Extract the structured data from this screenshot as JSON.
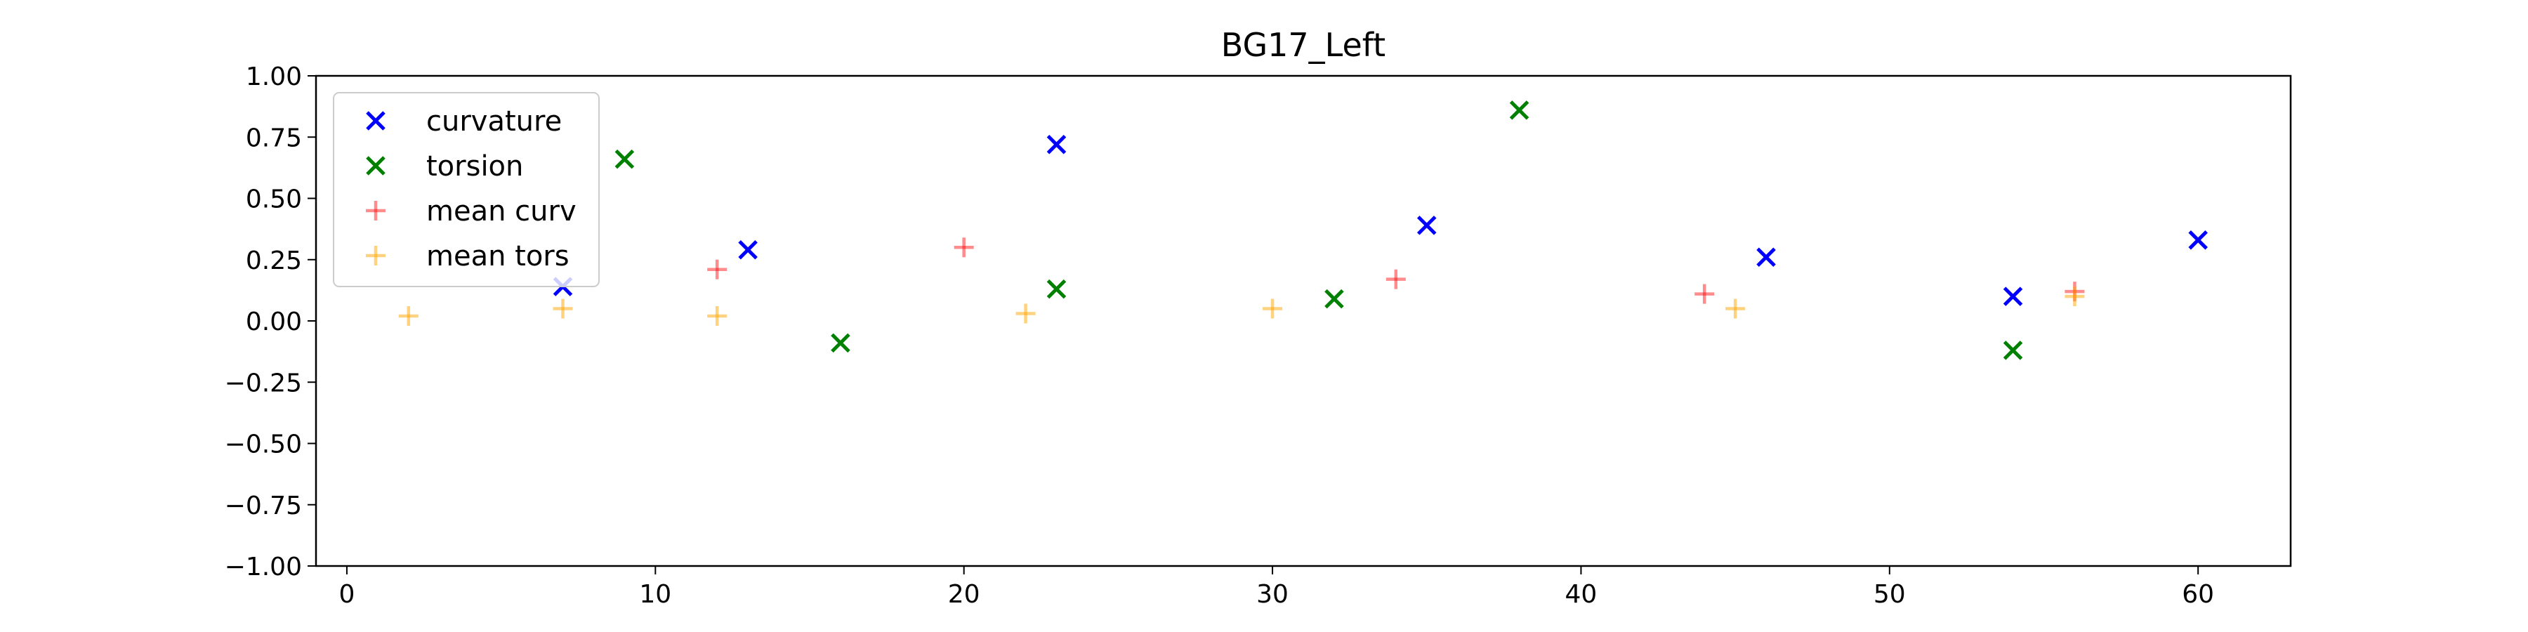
{
  "chart_data": {
    "type": "scatter",
    "title": "BG17_Left",
    "xlabel": "",
    "ylabel": "",
    "xlim": [
      -1,
      63
    ],
    "ylim": [
      -1.0,
      1.0
    ],
    "x_ticks": [
      0,
      10,
      20,
      30,
      40,
      50,
      60
    ],
    "x_tick_labels": [
      "0",
      "10",
      "20",
      "30",
      "40",
      "50",
      "60"
    ],
    "y_ticks": [
      1.0,
      0.75,
      0.5,
      0.25,
      0.0,
      -0.25,
      -0.5,
      -0.75,
      -1.0
    ],
    "y_tick_labels": [
      "1.00",
      "0.75",
      "0.50",
      "0.25",
      "0.00",
      "−0.25",
      "−0.50",
      "−0.75",
      "−1.00"
    ],
    "grid": false,
    "legend_position": "upper-left",
    "series": [
      {
        "name": "curvature",
        "marker": "x",
        "color": "#0000ff",
        "opacity": 1,
        "points": [
          [
            7,
            0.14
          ],
          [
            13,
            0.29
          ],
          [
            23,
            0.72
          ],
          [
            35,
            0.39
          ],
          [
            46,
            0.26
          ],
          [
            54,
            0.1
          ],
          [
            60,
            0.33
          ]
        ]
      },
      {
        "name": "torsion",
        "marker": "x",
        "color": "#008000",
        "opacity": 1,
        "points": [
          [
            9,
            0.66
          ],
          [
            16,
            -0.09
          ],
          [
            23,
            0.13
          ],
          [
            32,
            0.09
          ],
          [
            38,
            0.86
          ],
          [
            54,
            -0.12
          ]
        ]
      },
      {
        "name": "mean curv",
        "marker": "+",
        "color": "#ff0000",
        "opacity": 0.45,
        "points": [
          [
            12,
            0.21
          ],
          [
            20,
            0.3
          ],
          [
            34,
            0.17
          ],
          [
            44,
            0.11
          ],
          [
            56,
            0.12
          ]
        ]
      },
      {
        "name": "mean tors",
        "marker": "+",
        "color": "#ffa500",
        "opacity": 0.5,
        "points": [
          [
            2,
            0.02
          ],
          [
            7,
            0.05
          ],
          [
            12,
            0.02
          ],
          [
            22,
            0.03
          ],
          [
            30,
            0.05
          ],
          [
            45,
            0.05
          ],
          [
            56,
            0.1
          ]
        ]
      }
    ]
  }
}
